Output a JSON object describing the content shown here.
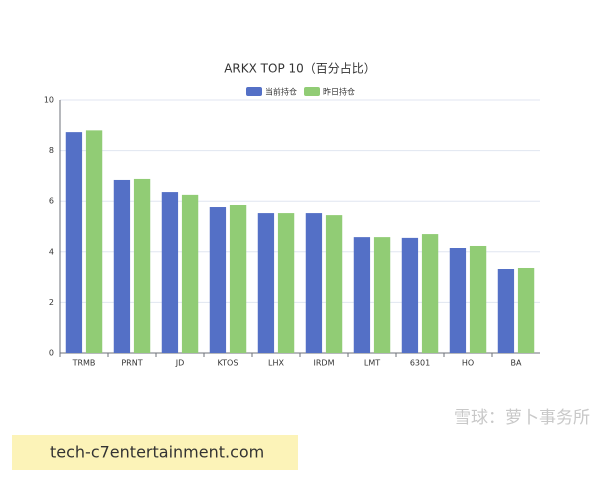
{
  "chart_data": {
    "type": "bar",
    "title": "ARKX TOP 10（百分占比）",
    "categories": [
      "TRMB",
      "PRNT",
      "JD",
      "KTOS",
      "LHX",
      "IRDM",
      "LMT",
      "6301",
      "HO",
      "BA"
    ],
    "series": [
      {
        "name": "当前持仓",
        "color": "#5470c6",
        "values": [
          8.73,
          6.84,
          6.36,
          5.77,
          5.53,
          5.53,
          4.58,
          4.55,
          4.15,
          3.32
        ]
      },
      {
        "name": "昨日持仓",
        "color": "#91cc75",
        "values": [
          8.8,
          6.88,
          6.25,
          5.85,
          5.53,
          5.45,
          4.58,
          4.7,
          4.23,
          3.36
        ]
      }
    ],
    "ylim": [
      0,
      10
    ],
    "yticks": [
      0,
      2,
      4,
      6,
      8,
      10
    ],
    "grid": true
  },
  "watermark": {
    "source": "雪球：萝卜事务所",
    "site": "tech-c7entertainment.com"
  }
}
